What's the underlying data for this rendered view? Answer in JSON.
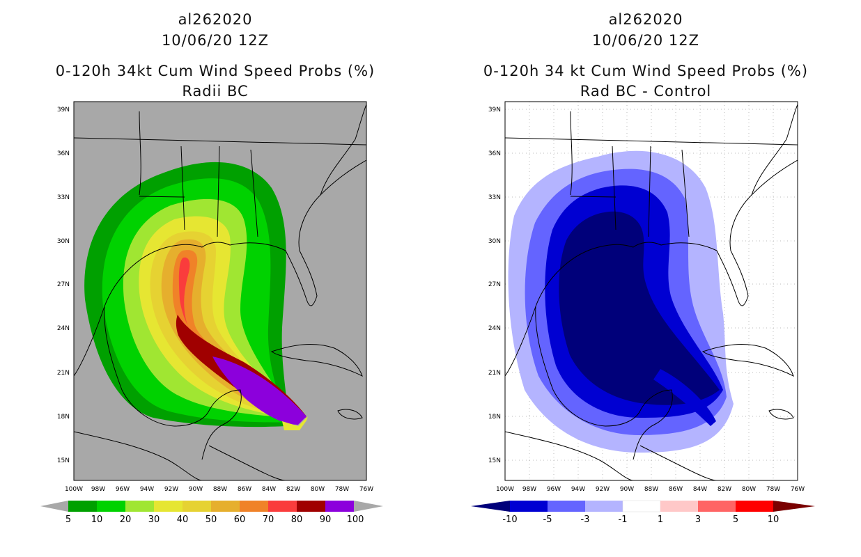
{
  "left_panel": {
    "title_lines": [
      "al262020",
      "10/06/20 12Z",
      "0-120h 34kt Cum Wind Speed Probs (%)",
      "Radii BC"
    ],
    "lat_labels": [
      "39N",
      "36N",
      "33N",
      "30N",
      "27N",
      "24N",
      "21N",
      "18N",
      "15N"
    ],
    "lon_labels": [
      "100W",
      "98W",
      "96W",
      "94W",
      "92W",
      "90W",
      "88W",
      "86W",
      "84W",
      "82W",
      "80W",
      "78W",
      "76W"
    ],
    "legend": {
      "colors": [
        "#00a000",
        "#00d200",
        "#a0e632",
        "#e6e632",
        "#e6d232",
        "#e6af2d",
        "#f08228",
        "#fa3c3c",
        "#a00000",
        "#8c00dc"
      ],
      "labels": [
        "5",
        "10",
        "20",
        "30",
        "40",
        "50",
        "60",
        "70",
        "80",
        "90",
        "100"
      ]
    }
  },
  "right_panel": {
    "title_lines": [
      "al262020",
      "10/06/20 12Z",
      "0-120h 34 kt Cum Wind Speed Probs (%)",
      "Rad BC - Control"
    ],
    "lat_labels": [
      "39N",
      "36N",
      "33N",
      "30N",
      "27N",
      "24N",
      "21N",
      "18N",
      "15N"
    ],
    "lon_labels": [
      "100W",
      "98W",
      "96W",
      "94W",
      "92W",
      "90W",
      "88W",
      "86W",
      "84W",
      "82W",
      "80W",
      "78W",
      "76W"
    ],
    "legend": {
      "colors": [
        "#0000d2",
        "#6464ff",
        "#b4b4ff",
        "#ffffff",
        "#ffc8c8",
        "#ff6464",
        "#ff0000"
      ],
      "end_colors": [
        "#00007a",
        "#7a0000"
      ],
      "labels": [
        "-10",
        "-5",
        "-3",
        "-1",
        "1",
        "3",
        "5",
        "10"
      ]
    }
  },
  "colors": {
    "land_background": "#a8a8a8",
    "coast": "#000000"
  }
}
